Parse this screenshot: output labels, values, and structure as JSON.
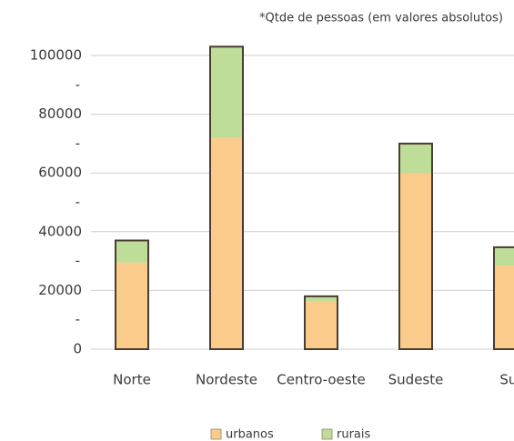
{
  "chart_data": {
    "type": "stacked_bar",
    "title": "*Qtde de pessoas (em valores absolutos)",
    "categories": [
      "Norte",
      "Nordeste",
      "Centro-oeste",
      "Sudeste",
      "Sul"
    ],
    "series": [
      {
        "name": "urbanos",
        "color": "#fbcb8c",
        "values": [
          29500,
          72000,
          16400,
          60000,
          28500
        ]
      },
      {
        "name": "rurais",
        "color": "#bedd98",
        "values": [
          7500,
          31000,
          1600,
          10000,
          6200
        ]
      }
    ],
    "ylim": [
      0,
      100000
    ],
    "yticks": [
      0,
      {
        "value": 10000,
        "label": "-"
      },
      20000,
      {
        "value": 30000,
        "label": "-"
      },
      40000,
      {
        "value": 50000,
        "label": "-"
      },
      60000,
      {
        "value": 70000,
        "label": "-"
      },
      80000,
      {
        "value": 90000,
        "label": "-"
      },
      100000
    ],
    "grid": true,
    "legend": "bottom"
  }
}
